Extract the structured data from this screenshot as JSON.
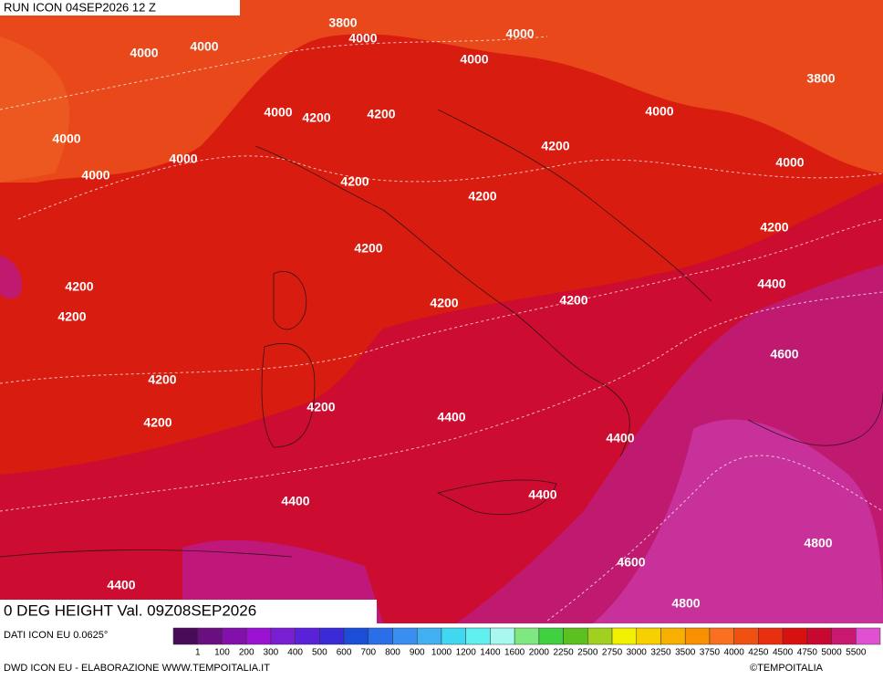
{
  "header": {
    "run": "RUN ICON 04SEP2026 12 Z",
    "title": "0 DEG HEIGHT Val. 09Z08SEP2026",
    "source": "DATI ICON EU 0.0625°"
  },
  "footer": {
    "credit": "DWD ICON EU - ELABORAZIONE WWW.TEMPOITALIA.IT",
    "copyright": "©TEMPOITALIA"
  },
  "contour_labels": [
    "3800",
    "4000",
    "4000",
    "4000",
    "4000",
    "4000",
    "3800",
    "4000",
    "4200",
    "4200",
    "4000",
    "4000",
    "4200",
    "4000",
    "4000",
    "4000",
    "4200",
    "4200",
    "4200",
    "4200",
    "4200",
    "4400",
    "4200",
    "4200",
    "4200",
    "4600",
    "4200",
    "4200",
    "4400",
    "4200",
    "4400",
    "4400",
    "4400",
    "4800",
    "4600",
    "4400",
    "4800"
  ],
  "legend": {
    "labels": [
      "1",
      "100",
      "200",
      "300",
      "400",
      "500",
      "600",
      "700",
      "800",
      "900",
      "1000",
      "1200",
      "1400",
      "1600",
      "2000",
      "2250",
      "2500",
      "2750",
      "3000",
      "3250",
      "3500",
      "3750",
      "4000",
      "4250",
      "4500",
      "4750",
      "5000",
      "5500"
    ],
    "colors": [
      "#4a0a5a",
      "#6a0f80",
      "#8210aa",
      "#9c12d2",
      "#7a1ed2",
      "#5a22d8",
      "#3a2ad8",
      "#1a4ed8",
      "#2a6ee8",
      "#3a8ef0",
      "#40b0f0",
      "#40d8f0",
      "#60f0f0",
      "#a8f8f0",
      "#80e880",
      "#40d040",
      "#5cc020",
      "#a0d020",
      "#f0f000",
      "#f8d000",
      "#f8b000",
      "#f89000",
      "#f87020",
      "#f05010",
      "#e83010",
      "#d81010",
      "#c80830",
      "#c81870",
      "#e050d0"
    ]
  }
}
